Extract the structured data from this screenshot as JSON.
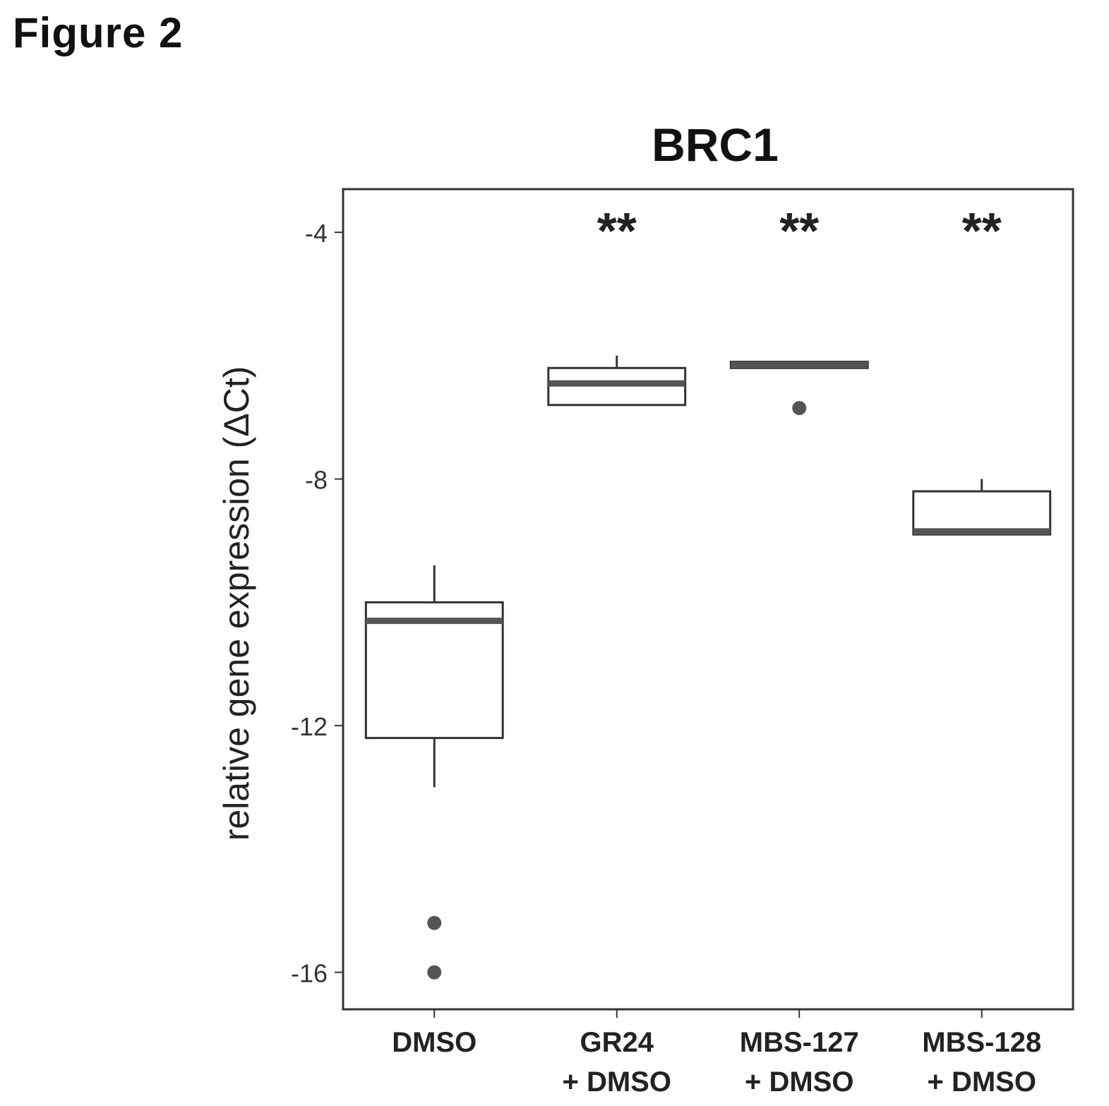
{
  "figure_label": "Figure 2",
  "chart_data": {
    "type": "box",
    "title": "BRC1",
    "ylabel": "relative gene expression (ΔCt)",
    "xlabel": "",
    "ylim": [
      -16.6,
      -3.3
    ],
    "yticks": [
      -4,
      -8,
      -12,
      -16
    ],
    "ytick_labels": [
      "-4",
      "-8",
      "-12",
      "-16"
    ],
    "grid": false,
    "colors": {
      "box_line": "#333333",
      "median": "#555555",
      "outlier": "#555555"
    },
    "categories": [
      {
        "lines": [
          "DMSO"
        ]
      },
      {
        "lines": [
          "GR24",
          "+ DMSO"
        ]
      },
      {
        "lines": [
          "MBS-127",
          "+ DMSO"
        ]
      },
      {
        "lines": [
          "MBS-128",
          "+ DMSO"
        ]
      }
    ],
    "boxes": [
      {
        "whisker_low": -13.0,
        "q1": -12.2,
        "median": -10.3,
        "q3": -10.0,
        "whisker_high": -9.4,
        "outliers": [
          -15.2,
          -16.0
        ],
        "annotation": ""
      },
      {
        "whisker_low": -6.8,
        "q1": -6.8,
        "median": -6.45,
        "q3": -6.2,
        "whisker_high": -6.0,
        "outliers": [],
        "annotation": "**"
      },
      {
        "whisker_low": -6.2,
        "q1": -6.2,
        "median": -6.15,
        "q3": -6.1,
        "whisker_high": -6.1,
        "outliers": [
          -6.85
        ],
        "annotation": "**"
      },
      {
        "whisker_low": -8.9,
        "q1": -8.9,
        "median": -8.85,
        "q3": -8.2,
        "whisker_high": -8.0,
        "outliers": [],
        "annotation": "**"
      }
    ]
  }
}
